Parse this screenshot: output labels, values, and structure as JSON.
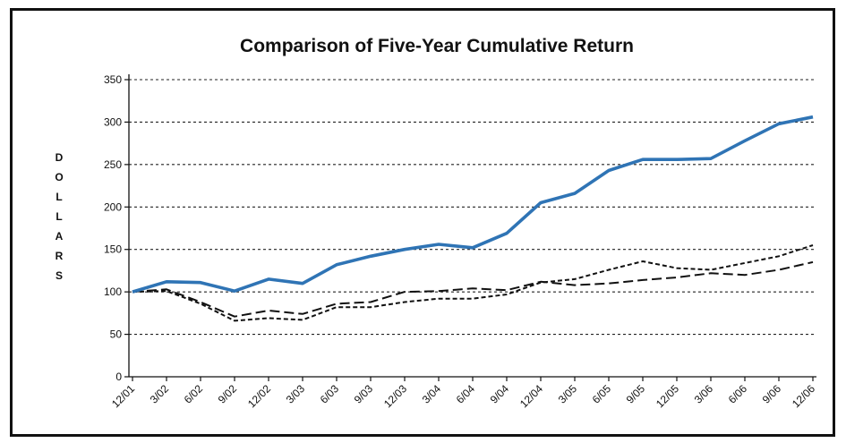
{
  "chart_data": {
    "type": "line",
    "title": "Comparison of Five-Year Cumulative Return",
    "ylabel": "DOLLARS",
    "xlabel": "",
    "ylim": [
      0,
      350
    ],
    "yticks": [
      0,
      50,
      100,
      150,
      200,
      250,
      300,
      350
    ],
    "grid": true,
    "legend": "none",
    "categories": [
      "12/01",
      "3/02",
      "6/02",
      "9/02",
      "12/02",
      "3/03",
      "6/03",
      "9/03",
      "12/03",
      "3/04",
      "6/04",
      "9/04",
      "12/04",
      "3/05",
      "6/05",
      "9/05",
      "12/05",
      "3/06",
      "6/06",
      "9/06",
      "12/06"
    ],
    "series": [
      {
        "style": "solid",
        "color": "#2f74b5",
        "values": [
          100,
          112,
          111,
          101,
          115,
          110,
          132,
          142,
          150,
          156,
          152,
          169,
          205,
          216,
          243,
          256,
          256,
          257,
          278,
          298,
          306
        ]
      },
      {
        "style": "long-dash",
        "color": "#111111",
        "values": [
          100,
          103,
          88,
          71,
          78,
          74,
          86,
          88,
          100,
          101,
          104,
          102,
          112,
          108,
          110,
          114,
          117,
          122,
          120,
          126,
          135
        ]
      },
      {
        "style": "short-dash",
        "color": "#111111",
        "values": [
          100,
          101,
          86,
          66,
          69,
          67,
          82,
          82,
          88,
          92,
          92,
          97,
          111,
          115,
          126,
          136,
          128,
          126,
          134,
          142,
          155
        ]
      }
    ]
  }
}
